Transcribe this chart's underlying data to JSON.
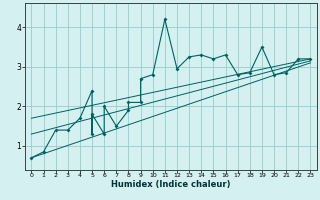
{
  "title": "",
  "xlabel": "Humidex (Indice chaleur)",
  "bg_color": "#d4f0f0",
  "line_color": "#006060",
  "grid_color": "#99cccc",
  "xlim": [
    -0.5,
    23.5
  ],
  "ylim": [
    0.4,
    4.6
  ],
  "yticks": [
    1,
    2,
    3,
    4
  ],
  "xticks": [
    0,
    1,
    2,
    3,
    4,
    5,
    6,
    7,
    8,
    9,
    10,
    11,
    12,
    13,
    14,
    15,
    16,
    17,
    18,
    19,
    20,
    21,
    22,
    23
  ],
  "scatter_x": [
    0,
    1,
    2,
    3,
    4,
    5,
    5,
    5,
    6,
    6,
    7,
    8,
    8,
    9,
    9,
    10,
    11,
    12,
    13,
    14,
    15,
    16,
    17,
    18,
    19,
    20,
    21,
    22,
    23
  ],
  "scatter_y": [
    0.7,
    0.85,
    1.4,
    1.4,
    1.7,
    2.4,
    1.3,
    1.8,
    1.3,
    2.0,
    1.5,
    1.9,
    2.1,
    2.1,
    2.7,
    2.8,
    4.2,
    2.95,
    3.25,
    3.3,
    3.2,
    3.3,
    2.8,
    2.85,
    3.5,
    2.8,
    2.85,
    3.2,
    3.2
  ],
  "trend_x": [
    0,
    23
  ],
  "trend_y": [
    0.7,
    3.1
  ],
  "trend2_x": [
    0,
    23
  ],
  "trend2_y": [
    1.3,
    3.15
  ],
  "trend3_x": [
    0,
    23
  ],
  "trend3_y": [
    1.7,
    3.2
  ]
}
